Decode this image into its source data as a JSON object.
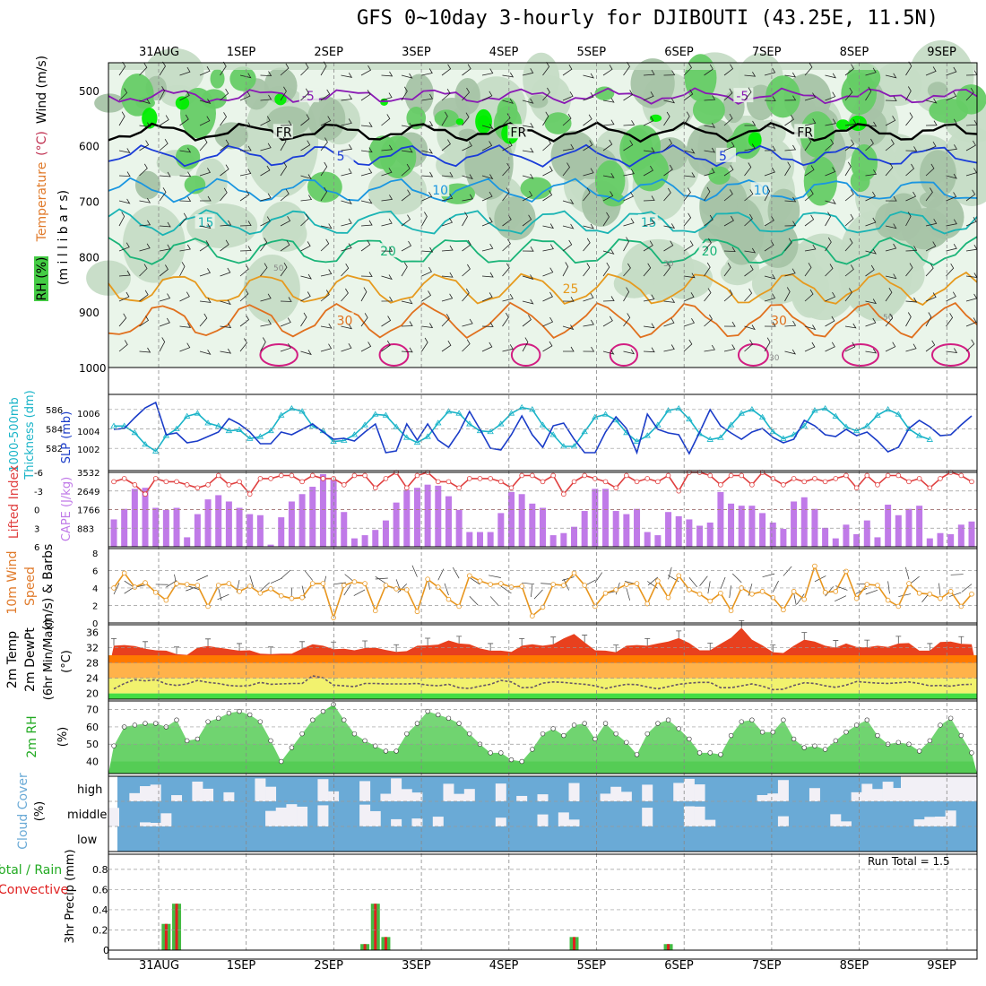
{
  "header": {
    "title": "GFS 0~10day 3-hourly for DJIBOUTI (43.25E, 11.5N)"
  },
  "colors": {
    "rh_light": "#eaf5ea",
    "rh_mid": "#c6dcc6",
    "rh_dark": "#a6c3a6",
    "rh_green": "#66cc66",
    "rh_bright": "#00ee00",
    "temp_purple": "#8a1ab4",
    "temp_black": "#000000",
    "temp_blue": "#1a3cd8",
    "temp_sky": "#1a96e0",
    "temp_cyan": "#1ab4b4",
    "temp_green": "#1ab478",
    "temp_orange": "#e69a1e",
    "temp_darkorange": "#e0701e",
    "temp_magenta": "#d21e82",
    "thickness": "#1ab4c8",
    "slp": "#1a3cc8",
    "cape": "#c07ae8",
    "lifted": "#e04040",
    "wind_speed": "#e8961e",
    "temp_band_red": "#e8401e",
    "temp_band_orange": "#ff7a00",
    "temp_band_light": "#ffb24a",
    "dew_yellow": "#f2f26e",
    "dew_green": "#44dd44",
    "rh_fill": "#55cc55",
    "cloud": "#6aaad6",
    "precip_total": "#44bb44",
    "precip_conv": "#e02020"
  },
  "chart_data": [
    {
      "type": "heatmap",
      "name_id": "upper-air",
      "ylabel_parts": [
        "RH (%)",
        "Temperature",
        "(°C)",
        "Wind",
        "(m/s)"
      ],
      "ylabel_axis": "(m i l l i b a r s)",
      "y_ticks": [
        500,
        600,
        700,
        800,
        900,
        1000
      ],
      "ylim": [
        1000,
        450
      ],
      "x_top_labels": [
        "31AUG",
        "1SEP",
        "2SEP",
        "3SEP",
        "4SEP",
        "5SEP",
        "6SEP",
        "7SEP",
        "8SEP",
        "9SEP"
      ],
      "isotherms": [
        {
          "label": "-5",
          "level": 510,
          "color": "temp_purple",
          "labels_at": [
            0.23,
            0.73
          ]
        },
        {
          "label": "FR",
          "level": 575,
          "color": "temp_black",
          "labels_at": [
            0.2,
            0.47,
            0.8
          ]
        },
        {
          "label": "5",
          "level": 618,
          "color": "temp_blue",
          "labels_at": [
            0.27,
            0.71
          ]
        },
        {
          "label": "10",
          "level": 680,
          "color": "temp_sky",
          "labels_at": [
            0.38,
            0.75
          ]
        },
        {
          "label": "15",
          "level": 738,
          "color": "temp_cyan",
          "labels_at": [
            0.11,
            0.62
          ]
        },
        {
          "label": "20",
          "level": 790,
          "color": "temp_green",
          "labels_at": [
            0.32,
            0.69
          ]
        },
        {
          "label": "25",
          "level": 858,
          "color": "temp_orange",
          "labels_at": [
            0.53
          ]
        },
        {
          "label": "30",
          "level": 915,
          "color": "temp_darkorange",
          "labels_at": [
            0.27,
            0.77
          ]
        }
      ],
      "rh_labels": [
        "30",
        "50"
      ]
    },
    {
      "type": "line",
      "name_id": "thickness-slp",
      "ylabel_left": [
        "1000-500mb",
        "Thickness (dm)"
      ],
      "ylabel_right": "SLP (mb)",
      "thickness_ticks": [
        582,
        584,
        586
      ],
      "slp_ticks": [
        1002,
        1004,
        1006
      ],
      "series": [
        {
          "name": "Thickness",
          "unit": "dm",
          "values": [
            584.3,
            584.3,
            583.6,
            582.4,
            581.7,
            583.3,
            584.0,
            585.3,
            585.6,
            584.6,
            584.3,
            583.8,
            583.9,
            583.0,
            583.2,
            583.8,
            585.4,
            586.1,
            585.8,
            584.3,
            583.8,
            582.7,
            582.8,
            583.4,
            584.4,
            585.5,
            585.4,
            584.2,
            583.1,
            582.6,
            583.2,
            584.6,
            585.8,
            585.6,
            584.5,
            583.8,
            583.7,
            584.5,
            585.6,
            586.2,
            586.0,
            584.4,
            583.4,
            582.2,
            582.2,
            583.7,
            585.2,
            585.5,
            584.9,
            583.6,
            582.7,
            583.3,
            584.4,
            585.9,
            586.1,
            585.0,
            583.5,
            582.9,
            583.1,
            584.4,
            585.6,
            586.0,
            585.2,
            583.7,
            583.0,
            583.4,
            584.3,
            585.9,
            586.1,
            585.3,
            584.2,
            583.8,
            584.3,
            585.4,
            586.0,
            585.5,
            584.0,
            583.3,
            582.9
          ]
        },
        {
          "name": "SLP",
          "unit": "mb",
          "values": [
            1004.2,
            1004.3,
            1005.5,
            1006.6,
            1007.2,
            1003.6,
            1003.8,
            1002.7,
            1002.9,
            1003.4,
            1003.9,
            1005.4,
            1004.8,
            1003.9,
            1002.6,
            1002.6,
            1003.9,
            1003.6,
            1004.2,
            1004.8,
            1003.9,
            1003.1,
            1003.2,
            1002.9,
            1003.9,
            1004.8,
            1001.6,
            1001.8,
            1004.8,
            1003.0,
            1004.8,
            1003.0,
            1002.2,
            1003.9,
            1006.2,
            1004.2,
            1002.1,
            1001.9,
            1003.6,
            1005.7,
            1003.6,
            1002.2,
            1004.6,
            1004.9,
            1003.1,
            1001.6,
            1001.6,
            1003.9,
            1005.6,
            1004.3,
            1001.6,
            1005.9,
            1004.2,
            1003.8,
            1003.6,
            1001.5,
            1003.9,
            1006.4,
            1004.6,
            1003.8,
            1003.1,
            1003.9,
            1004.3,
            1003.3,
            1002.7,
            1003.1,
            1005.2,
            1004.6,
            1003.6,
            1003.4,
            1004.2,
            1003.5,
            1003.9,
            1002.9,
            1001.7,
            1002.2,
            1004.3,
            1005.2,
            1004.5,
            1003.5,
            1003.6,
            1004.7,
            1005.7
          ]
        }
      ]
    },
    {
      "type": "bar",
      "name_id": "cape-li",
      "ylabel_left": "Lifted Index",
      "ylabel_right": "CAPE (J/kg)",
      "li_ticks": [
        "-6",
        "-3",
        "0",
        "3",
        "6"
      ],
      "cape_ticks": [
        "883",
        "1766",
        "2649",
        "3532"
      ],
      "series": [
        {
          "name": "CAPE",
          "unit": "J/kg",
          "values": [
            1300,
            1800,
            2750,
            2800,
            1850,
            1750,
            1850,
            450,
            1550,
            2250,
            2450,
            2150,
            1850,
            1550,
            1500,
            100,
            1400,
            2150,
            2500,
            2850,
            3450,
            3200,
            1650,
            400,
            550,
            800,
            1250,
            2100,
            2700,
            2800,
            2950,
            2900,
            2400,
            1750,
            700,
            700,
            700,
            1600,
            2600,
            2500,
            2050,
            1850,
            550,
            650,
            950,
            1700,
            2750,
            2750,
            1700,
            1550,
            1800,
            700,
            550,
            1650,
            1450,
            1300,
            1000,
            1150,
            2600,
            2050,
            1950,
            1950,
            1600,
            1150,
            850,
            2150,
            2350,
            1800,
            900,
            400,
            1050,
            600,
            1250,
            450,
            2000,
            1500,
            1800,
            1950,
            400,
            650,
            600,
            1050,
            1200
          ]
        },
        {
          "name": "Lifted Index",
          "unit": "",
          "values": [
            -4.5,
            -5,
            -4,
            -2.5,
            -5,
            -4.5,
            -4.5,
            -4,
            -3.5,
            -4,
            -5.5,
            -4,
            -4.5,
            -2.5,
            -5,
            -5,
            -5.5,
            -5.5,
            -4.5,
            -5.5,
            -5,
            -5,
            -4,
            -5.5,
            -5.5,
            -3.5,
            -5,
            -6,
            -3.5,
            -5.5,
            -6,
            -4.5,
            -4.5,
            -3.5,
            -5,
            -5,
            -5,
            -4.5,
            -3.5,
            -5.5,
            -5.5,
            -4.5,
            -5.5,
            -2.5,
            -4.5,
            -5.5,
            -5,
            -4.5,
            -3.5,
            -5.5,
            -4.5,
            -5,
            -4.5,
            -5.5,
            -3,
            -6,
            -6,
            -5.5,
            -4,
            -5.5,
            -5.5,
            -4,
            -6,
            -5,
            -4,
            -5,
            -4.5,
            -5,
            -4.5,
            -5,
            -5.5,
            -3.5,
            -5.5,
            -4,
            -5.5,
            -5.5,
            -4.5,
            -5,
            -3.5,
            -5,
            -6,
            -5.5,
            -4.5
          ]
        }
      ]
    },
    {
      "type": "line",
      "name_id": "wind10m",
      "ylabel_parts": [
        "10m Wind",
        "Speed",
        "(m/s) & Barbs"
      ],
      "y_ticks": [
        0,
        2,
        4,
        6,
        8
      ],
      "series": [
        {
          "name": "10m Wind Speed",
          "unit": "m/s",
          "values": [
            4.0,
            5.7,
            4.1,
            4.6,
            3.5,
            2.6,
            4.5,
            4.4,
            4.3,
            1.9,
            4.3,
            4.5,
            3.6,
            4.2,
            3.4,
            3.9,
            3.1,
            2.8,
            2.9,
            4.5,
            4.5,
            0.6,
            4.3,
            4.7,
            4.5,
            1.4,
            4.3,
            3.9,
            3.8,
            1.3,
            5.0,
            4.1,
            2.7,
            1.9,
            5.4,
            4.8,
            4.4,
            4.5,
            4.1,
            4.2,
            0.8,
            1.8,
            4.4,
            4.3,
            5.7,
            4.3,
            1.9,
            3.4,
            3.8,
            4.4,
            4.5,
            2.2,
            4.8,
            2.9,
            5.4,
            3.8,
            3.3,
            2.5,
            3.4,
            1.4,
            4.0,
            3.3,
            3.6,
            2.9,
            1.5,
            3.6,
            2.7,
            6.5,
            3.5,
            3.6,
            5.9,
            2.8,
            4.4,
            4.3,
            2.6,
            1.9,
            4.5,
            3.4,
            3.3,
            2.8,
            3.6,
            1.9,
            3.3
          ]
        }
      ]
    },
    {
      "type": "area",
      "name_id": "temp2m",
      "ylabel_parts": [
        "2m Temp",
        "2m DewPt",
        "(6hr Min/Max)"
      ],
      "unit": "(°C)",
      "y_ticks": [
        20,
        24,
        28,
        32,
        36
      ],
      "series": [
        {
          "name": "2m Temp",
          "unit": "°C",
          "values": [
            32.5,
            32.7,
            32.4,
            31.7,
            31.3,
            31.2,
            30.3,
            30.1,
            32.0,
            32.4,
            32.0,
            31.6,
            31.2,
            31.3,
            30.4,
            30.3,
            30.4,
            30.4,
            31.7,
            32.9,
            32.5,
            31.6,
            31.7,
            31.3,
            31.9,
            32.0,
            31.4,
            30.9,
            31.1,
            32.5,
            32.6,
            32.8,
            33.9,
            33.1,
            32.9,
            31.8,
            31.2,
            31.2,
            30.9,
            32.5,
            32.9,
            32.5,
            32.9,
            34.4,
            35.6,
            33.4,
            31.3,
            31.2,
            30.8,
            32.5,
            32.7,
            32.5,
            33.1,
            33.6,
            34.5,
            33.2,
            31.3,
            31.3,
            33.0,
            34.6,
            37.2,
            34.1,
            32.6,
            30.8,
            30.6,
            32.5,
            34.1,
            33.6,
            32.5,
            32.0,
            33.1,
            32.2,
            32.1,
            32.5,
            32.2,
            33.1,
            33.2,
            31.2,
            31.2,
            33.5,
            33.6,
            33.0,
            32.9
          ]
        },
        {
          "name": "2m DewPt",
          "unit": "°C",
          "values": [
            21.2,
            22.6,
            23.6,
            23.3,
            23.6,
            22.5,
            22.1,
            22.5,
            23.4,
            22.9,
            22.6,
            22.1,
            21.9,
            22.1,
            22.9,
            22.4,
            22.5,
            22.6,
            22.6,
            24.6,
            24.1,
            22.2,
            22.0,
            21.8,
            22.6,
            22.6,
            22.5,
            22.5,
            22.5,
            22.6,
            22.2,
            22.0,
            22.4,
            21.5,
            21.3,
            21.9,
            22.4,
            23.4,
            23.0,
            21.5,
            21.6,
            22.7,
            23.0,
            22.9,
            22.6,
            22.4,
            22.0,
            21.3,
            21.9,
            22.4,
            22.3,
            21.7,
            21.2,
            21.8,
            22.4,
            22.7,
            22.9,
            22.9,
            21.5,
            21.5,
            22.0,
            22.5,
            21.9,
            21.0,
            21.1,
            22.1,
            22.8,
            22.6,
            22.0,
            21.6,
            22.2,
            23.1,
            22.9,
            22.7,
            22.6,
            22.8,
            23.0,
            22.6,
            22.0,
            22.1,
            21.9,
            22.3,
            22.4
          ]
        }
      ]
    },
    {
      "type": "area",
      "name_id": "rh2m",
      "ylabel": "2m RH",
      "unit": "(%)",
      "y_ticks": [
        40,
        50,
        60,
        70
      ],
      "series": [
        {
          "name": "2m RH",
          "unit": "%",
          "values": [
            49,
            60,
            61,
            62,
            62,
            60,
            64,
            52,
            53,
            63,
            65,
            68,
            69,
            67,
            63,
            52,
            40,
            48,
            56,
            64,
            69,
            73,
            64,
            56,
            52,
            49,
            46,
            46,
            56,
            62,
            69,
            67,
            65,
            62,
            56,
            50,
            45,
            45,
            41,
            40,
            47,
            56,
            59,
            55,
            61,
            62,
            53,
            62,
            56,
            51,
            44,
            56,
            62,
            64,
            59,
            53,
            45,
            45,
            44,
            55,
            63,
            64,
            57,
            57,
            64,
            53,
            48,
            49,
            47,
            52,
            57,
            61,
            64,
            55,
            50,
            51,
            50,
            46,
            52,
            61,
            65,
            55,
            45
          ]
        }
      ]
    },
    {
      "type": "heatmap",
      "name_id": "cloud",
      "ylabel_parts": [
        "Cloud Cover",
        "(%)"
      ],
      "levels": [
        "high",
        "middle",
        "low"
      ]
    },
    {
      "type": "bar",
      "name_id": "precip",
      "ylabel_left": [
        "Total / Rain",
        "Convective"
      ],
      "ylabel_right": "3hr Precip (mm)",
      "y_ticks": [
        "0",
        "0.2",
        "0.4",
        "0.6",
        "0.8"
      ],
      "annotation": "Run Total = 1.5",
      "bars": [
        {
          "x_index": 5,
          "total": 0.26,
          "convective": 0.26
        },
        {
          "x_index": 6,
          "total": 0.46,
          "convective": 0.46
        },
        {
          "x_index": 24,
          "total": 0.06,
          "convective": 0.06
        },
        {
          "x_index": 25,
          "total": 0.46,
          "convective": 0.46
        },
        {
          "x_index": 26,
          "total": 0.13,
          "convective": 0.13
        },
        {
          "x_index": 44,
          "total": 0.13,
          "convective": 0.13
        },
        {
          "x_index": 53,
          "total": 0.06,
          "convective": 0.06
        }
      ],
      "x_bottom_labels": [
        "31AUG",
        "1SEP",
        "2SEP",
        "3SEP",
        "4SEP",
        "5SEP",
        "6SEP",
        "7SEP",
        "8SEP",
        "9SEP"
      ]
    }
  ]
}
